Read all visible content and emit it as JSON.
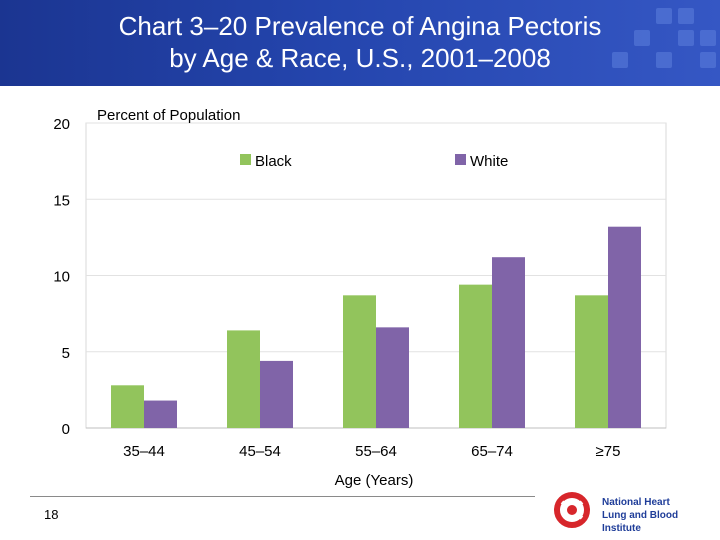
{
  "header": {
    "title_line1": "Chart 3–20 Prevalence of Angina Pectoris",
    "title_line2": "by Age & Race, U.S., 2001–2008"
  },
  "chart_data": {
    "type": "bar",
    "ylabel": "Percent of Population",
    "xlabel": "Age (Years)",
    "categories": [
      "35–44",
      "45–54",
      "55–64",
      "65–74",
      "≥75"
    ],
    "series": [
      {
        "name": "Black",
        "color": "#92c45c",
        "values": [
          2.8,
          6.4,
          8.7,
          9.4,
          8.7
        ]
      },
      {
        "name": "White",
        "color": "#8064a8",
        "values": [
          1.8,
          4.4,
          6.6,
          11.2,
          13.2
        ]
      }
    ],
    "ylim": [
      0,
      20
    ],
    "yticks": [
      "0",
      "5",
      "10",
      "15",
      "20"
    ],
    "legend_position": "top",
    "grid": true
  },
  "footer": {
    "page_number": "18",
    "logo_line1": "National Heart",
    "logo_line2": "Lung and Blood Institute"
  }
}
